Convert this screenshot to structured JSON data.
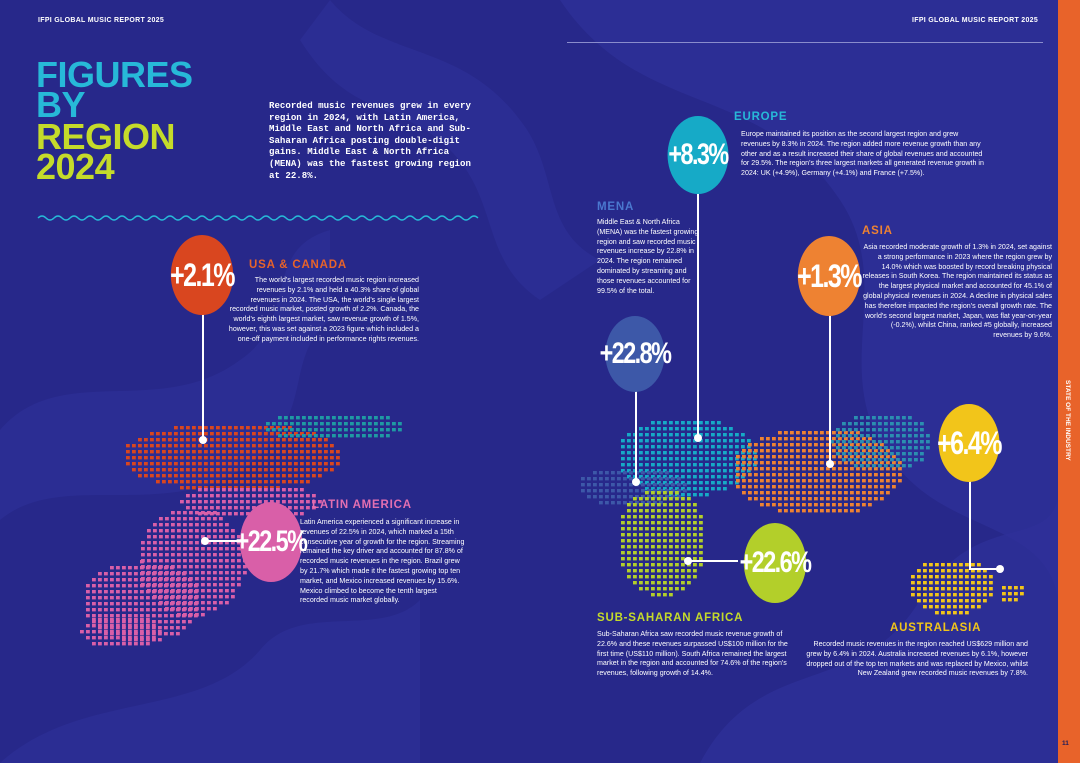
{
  "header": {
    "left": "IFPI GLOBAL MUSIC REPORT 2025",
    "right": "IFPI GLOBAL MUSIC REPORT 2025"
  },
  "title": {
    "line1": "FIGURES",
    "line2": "BY",
    "line3": "REGION",
    "line4": "2024"
  },
  "intro": "Recorded music revenues grew in every region in 2024, with Latin America, Middle East and North Africa and Sub-Saharan Africa posting double-digit gains. Middle East & North Africa (MENA) was the fastest growing region at 22.8%.",
  "regions": {
    "usa": {
      "growth": "+2.1%",
      "name": "USA & CANADA",
      "text": "The world's largest recorded music region increased revenues by 2.1% and held a 40.3% share of global revenues in 2024. The USA, the world's single largest recorded music market, posted growth of 2.2%. Canada, the world's eighth largest market, saw revenue growth of 1.5%, however, this was set against a 2023 figure which included a one-off payment included in performance rights revenues.",
      "color": "#d9461f"
    },
    "latam": {
      "growth": "+22.5%",
      "name": "LATIN AMERICA",
      "text": "Latin America experienced a significant increase in revenues of 22.5% in 2024, which marked a 15th consecutive year of growth for the region. Streaming remained the key driver and accounted for 87.8% of recorded music revenues in the region. Brazil grew by 21.7% which made it the fastest growing top ten market, and Mexico increased revenues by 15.6%. Mexico climbed to become the tenth largest recorded music market globally.",
      "color": "#d95fa8"
    },
    "europe": {
      "growth": "+8.3%",
      "name": "EUROPE",
      "text": "Europe maintained its position as the second largest region and grew revenues by 8.3% in 2024. The region added more revenue growth than any other and as a result increased their share of global revenues and accounted for 29.5%. The region's three largest markets all generated revenue growth in 2024: UK (+4.9%), Germany (+4.1%) and France (+7.5%).",
      "color": "#16aac7"
    },
    "mena": {
      "growth": "+22.8%",
      "name": "MENA",
      "text": "Middle East & North Africa (MENA) was the fastest growing region and saw recorded music revenues increase by 22.8% in 2024. The region remained dominated by streaming and those revenues accounted for 99.5% of the total.",
      "color": "#3d58a8"
    },
    "asia": {
      "growth": "+1.3%",
      "name": "ASIA",
      "text": "Asia recorded moderate growth of 1.3% in 2024, set against a strong performance in 2023 where the region grew by 14.0% which was boosted by record breaking physical releases in South Korea. The region maintained its status as the largest physical market and accounted for 45.1% of global physical revenues in 2024. A decline in physical sales has therefore impacted the region's overall growth rate. The world's second largest market, Japan, was flat year-on-year (-0.2%), whilst China, ranked #5 globally, increased revenues by 9.6%.",
      "color": "#ee8232"
    },
    "australasia": {
      "growth": "+6.4%",
      "name": "AUSTRALASIA",
      "text": "Recorded music revenues in the region reached US$629 million and grew by 6.4% in 2024. Australia increased revenues by 6.1%, however dropped out of the top ten markets and was replaced by Mexico, whilst New Zealand grew recorded music revenues by 7.8%.",
      "color": "#f2c51a"
    },
    "ssa": {
      "growth": "+22.6%",
      "name": "SUB-SAHARAN AFRICA",
      "text": "Sub-Saharan Africa saw recorded music revenue growth of 22.6% and these revenues surpassed US$100 million for the first time (US$110 million). South Africa remained the largest market in the region and accounted for 74.6% of the region's revenues, following growth of 14.4%.",
      "color": "#b3cf2a"
    }
  },
  "sidebar": {
    "label": "STATE OF THE INDUSTRY",
    "page": "11"
  }
}
